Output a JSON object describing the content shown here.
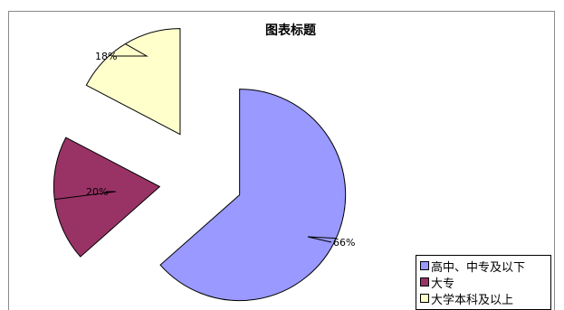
{
  "chart_data": {
    "type": "pie",
    "title": "图表标题",
    "categories": [
      "高中、中专及以下",
      "大专",
      "大学本科及以上"
    ],
    "values": [
      66,
      20,
      18
    ],
    "labels": [
      "66%",
      "20%",
      "18%"
    ],
    "exploded": true,
    "legend": "bottom-right"
  },
  "colors": {
    "高中、中专及以下": "#9999ff",
    "大专": "#993366",
    "大学本科及以上": "#ffffcc"
  }
}
